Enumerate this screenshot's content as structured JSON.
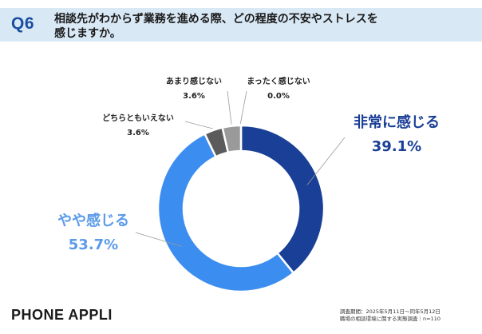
{
  "header": {
    "question_no": "Q6",
    "question_line1": "相談先がわからず業務を進める際、どの程度の不安やストレスを",
    "question_line2": "感じますか。"
  },
  "chart_data": {
    "type": "pie",
    "donut": true,
    "categories": [
      "非常に感じる",
      "やや感じる",
      "どちらともいえない",
      "あまり感じない",
      "まったく感じない"
    ],
    "values": [
      39.1,
      53.7,
      3.6,
      3.6,
      0.0
    ],
    "value_labels": [
      "39.1%",
      "53.7%",
      "3.6%",
      "3.6%",
      "0.0%"
    ],
    "colors": [
      "#1a3f96",
      "#3c8df0",
      "#5b5b5b",
      "#9a9a9a",
      "#c8c8c8"
    ]
  },
  "footer": {
    "logo": "PHONE APPLI",
    "source_line1": "調査期間：2025年5月11日～同年5月12日",
    "source_line2": "職場の相談環境に関する実態調査｜n=110"
  }
}
